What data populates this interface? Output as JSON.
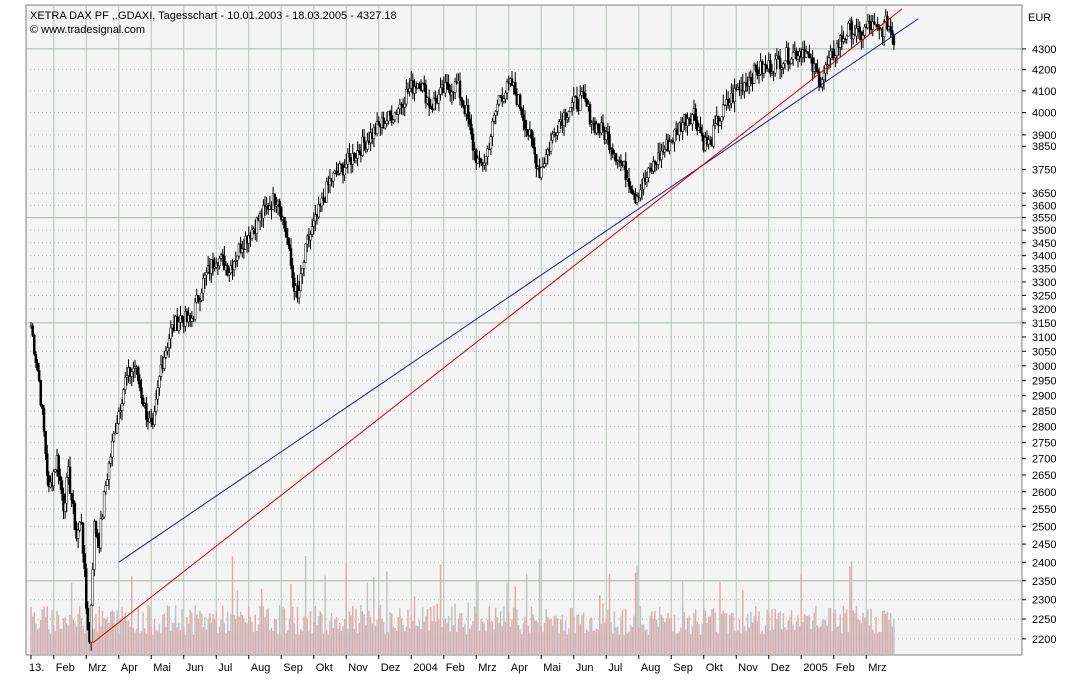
{
  "header": {
    "title": "XETRA DAX PF ,.GDAXI, Tagesschart - 10.01.2003 - 18.03.2005 - 4327.18",
    "source": "© www.tradesignal.com"
  },
  "chart_data": {
    "type": "candlestick",
    "title": "XETRA DAX PF ,.GDAXI, Tagesschart - 10.01.2003 - 18.03.2005 - 4327.18",
    "currency_label": "EUR",
    "y_scale": "log",
    "ylim": [
      2160,
      4520
    ],
    "y_ticks": [
      2200,
      2250,
      2300,
      2350,
      2400,
      2450,
      2500,
      2550,
      2600,
      2650,
      2700,
      2750,
      2800,
      2850,
      2900,
      2950,
      3000,
      3050,
      3100,
      3150,
      3200,
      3250,
      3300,
      3350,
      3400,
      3450,
      3500,
      3550,
      3600,
      3650,
      3750,
      3850,
      3900,
      4000,
      4100,
      4200,
      4300
    ],
    "x_labels": [
      "13.",
      "Feb",
      "Mrz",
      "Apr",
      "Mai",
      "Jun",
      "Jul",
      "Aug",
      "Sep",
      "Okt",
      "Nov",
      "Dez",
      "2004",
      "Feb",
      "Mrz",
      "Apr",
      "Mai",
      "Jun",
      "Jul",
      "Aug",
      "Sep",
      "Okt",
      "Nov",
      "Dez",
      "2005",
      "Feb",
      "Mrz"
    ],
    "month_index": [
      0,
      0.7,
      1.7,
      2.7,
      3.7,
      4.7,
      5.7,
      6.7,
      7.7,
      8.7,
      9.7,
      10.7,
      11.7,
      12.7,
      13.7,
      14.7,
      15.7,
      16.7,
      17.7,
      18.7,
      19.7,
      20.7,
      21.7,
      22.7,
      23.7,
      24.7,
      25.7
    ],
    "price_path": [
      [
        0,
        3140
      ],
      [
        0.25,
        2950
      ],
      [
        0.4,
        2780
      ],
      [
        0.55,
        2600
      ],
      [
        0.8,
        2700
      ],
      [
        1.0,
        2560
      ],
      [
        1.15,
        2650
      ],
      [
        1.4,
        2470
      ],
      [
        1.55,
        2520
      ],
      [
        1.7,
        2280
      ],
      [
        1.8,
        2190
      ],
      [
        1.95,
        2500
      ],
      [
        2.1,
        2460
      ],
      [
        2.3,
        2620
      ],
      [
        2.6,
        2800
      ],
      [
        2.9,
        2950
      ],
      [
        3.2,
        3000
      ],
      [
        3.5,
        2860
      ],
      [
        3.75,
        2780
      ],
      [
        4.0,
        3000
      ],
      [
        4.3,
        3120
      ],
      [
        4.6,
        3170
      ],
      [
        4.9,
        3150
      ],
      [
        5.3,
        3300
      ],
      [
        5.7,
        3400
      ],
      [
        6.1,
        3350
      ],
      [
        6.5,
        3450
      ],
      [
        6.9,
        3520
      ],
      [
        7.3,
        3600
      ],
      [
        7.6,
        3640
      ],
      [
        7.85,
        3480
      ],
      [
        8.05,
        3320
      ],
      [
        8.2,
        3230
      ],
      [
        8.5,
        3450
      ],
      [
        8.8,
        3550
      ],
      [
        9.2,
        3700
      ],
      [
        9.6,
        3760
      ],
      [
        10.0,
        3820
      ],
      [
        10.4,
        3890
      ],
      [
        10.8,
        3950
      ],
      [
        11.2,
        4000
      ],
      [
        11.6,
        4100
      ],
      [
        11.95,
        4150
      ],
      [
        12.3,
        4030
      ],
      [
        12.7,
        4100
      ],
      [
        13.1,
        4130
      ],
      [
        13.4,
        4000
      ],
      [
        13.6,
        3850
      ],
      [
        13.8,
        3760
      ],
      [
        14.0,
        3800
      ],
      [
        14.4,
        4070
      ],
      [
        14.8,
        4130
      ],
      [
        15.1,
        4010
      ],
      [
        15.4,
        3860
      ],
      [
        15.65,
        3740
      ],
      [
        15.9,
        3830
      ],
      [
        16.2,
        3950
      ],
      [
        16.6,
        4030
      ],
      [
        17.0,
        4060
      ],
      [
        17.3,
        3950
      ],
      [
        17.7,
        3900
      ],
      [
        18.1,
        3790
      ],
      [
        18.4,
        3710
      ],
      [
        18.6,
        3640
      ],
      [
        18.9,
        3700
      ],
      [
        19.2,
        3780
      ],
      [
        19.5,
        3840
      ],
      [
        19.8,
        3900
      ],
      [
        20.1,
        3970
      ],
      [
        20.4,
        4000
      ],
      [
        20.7,
        3870
      ],
      [
        20.9,
        3860
      ],
      [
        21.1,
        3950
      ],
      [
        21.4,
        4030
      ],
      [
        21.7,
        4100
      ],
      [
        22.0,
        4150
      ],
      [
        22.4,
        4200
      ],
      [
        22.8,
        4220
      ],
      [
        23.2,
        4260
      ],
      [
        23.5,
        4280
      ],
      [
        23.8,
        4300
      ],
      [
        24.0,
        4220
      ],
      [
        24.3,
        4150
      ],
      [
        24.6,
        4250
      ],
      [
        24.9,
        4340
      ],
      [
        25.2,
        4400
      ],
      [
        25.5,
        4360
      ],
      [
        25.8,
        4420
      ],
      [
        26.1,
        4380
      ],
      [
        26.35,
        4430
      ],
      [
        26.5,
        4380
      ],
      [
        26.6,
        4320
      ]
    ],
    "trendlines": [
      {
        "name": "blue",
        "color": "#1c1c8c",
        "from": [
          2.7,
          2400
        ],
        "to": [
          27.3,
          4450
        ]
      },
      {
        "name": "red",
        "color": "#d40000",
        "from": [
          1.9,
          2190
        ],
        "to": [
          26.8,
          4500
        ]
      }
    ],
    "volume_colors": [
      "#e3a7a7",
      "#c0c0c0"
    ]
  }
}
